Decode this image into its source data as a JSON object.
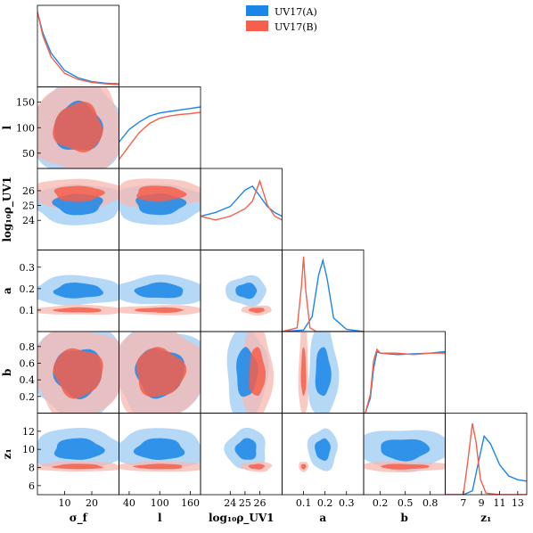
{
  "chart_data": {
    "type": "corner",
    "parameters": [
      "σf",
      "l",
      "log10ρUV1",
      "a",
      "b",
      "z1"
    ],
    "axis_labels": {
      "x": [
        "σ_f",
        "l",
        "log₁₀ρ_UV1",
        "a",
        "b",
        "z₁"
      ],
      "y": [
        "l",
        "log₁₀ρ_UV1",
        "a",
        "b",
        "z₁"
      ]
    },
    "ranges": [
      [
        0,
        30
      ],
      [
        20,
        180
      ],
      [
        22,
        27.5
      ],
      [
        0,
        0.38
      ],
      [
        0,
        0.98
      ],
      [
        5,
        14
      ]
    ],
    "ticks": [
      [
        10,
        20
      ],
      [
        40,
        100,
        160
      ],
      [
        24,
        25,
        26
      ],
      [
        0.1,
        0.2,
        0.3
      ],
      [
        0.2,
        0.4,
        0.6,
        0.8
      ],
      [
        6,
        8,
        10,
        12
      ]
    ],
    "x_tick_labels": [
      [
        "10",
        "20"
      ],
      [
        "40",
        "100",
        "160"
      ],
      [
        "24",
        "25",
        "26"
      ],
      [
        "0.1",
        "0.2",
        "0.3"
      ],
      [
        "0.2",
        "0.5",
        "0.8"
      ],
      [
        "7",
        "9",
        "11",
        "13"
      ]
    ],
    "x_tick_values": [
      [
        10,
        20
      ],
      [
        40,
        100,
        160
      ],
      [
        24,
        25,
        26
      ],
      [
        0.1,
        0.2,
        0.3
      ],
      [
        0.2,
        0.5,
        0.8
      ],
      [
        7,
        9,
        11,
        13
      ]
    ],
    "y_tick_labels": [
      [
        "50",
        "100",
        "150"
      ],
      [
        "24",
        "25",
        "26"
      ],
      [
        "0.1",
        "0.2",
        "0.3"
      ],
      [
        "0.2",
        "0.4",
        "0.6",
        "0.8"
      ],
      [
        "6",
        "8",
        "10",
        "12"
      ]
    ],
    "y_tick_values": [
      [
        50,
        100,
        150
      ],
      [
        24,
        25,
        26
      ],
      [
        0.1,
        0.2,
        0.3
      ],
      [
        0.2,
        0.4,
        0.6,
        0.8
      ],
      [
        6,
        8,
        10,
        12
      ]
    ],
    "legend": {
      "placement": "top-center",
      "entries": [
        {
          "name": "UV17(A)",
          "color": "#1a86e8"
        },
        {
          "name": "UV17(B)",
          "color": "#f55f4b"
        }
      ]
    },
    "series": [
      {
        "name": "UV17(A)",
        "color": "#1a86e8",
        "light_color": "#9ccbf4",
        "marginals": [
          {
            "x": [
              0,
              2,
              5,
              10,
              15,
              20,
              25,
              30
            ],
            "y": [
              1.0,
              0.72,
              0.45,
              0.22,
              0.12,
              0.07,
              0.05,
              0.04
            ]
          },
          {
            "x": [
              20,
              40,
              60,
              80,
              100,
              120,
              140,
              160,
              180
            ],
            "y": [
              0.35,
              0.52,
              0.62,
              0.7,
              0.74,
              0.76,
              0.78,
              0.8,
              0.82
            ]
          },
          {
            "x": [
              22,
              23,
              24,
              25,
              25.5,
              26,
              26.5,
              27,
              27.5
            ],
            "y": [
              0.45,
              0.5,
              0.58,
              0.8,
              0.85,
              0.72,
              0.58,
              0.5,
              0.45
            ]
          },
          {
            "x": [
              0,
              0.1,
              0.14,
              0.17,
              0.19,
              0.21,
              0.24,
              0.3,
              0.38
            ],
            "y": [
              0.0,
              0.02,
              0.2,
              0.75,
              0.95,
              0.7,
              0.18,
              0.03,
              0.0
            ]
          },
          {
            "x": [
              0.02,
              0.08,
              0.12,
              0.16,
              0.2,
              0.4,
              0.6,
              0.8,
              0.98
            ],
            "y": [
              0.0,
              0.2,
              0.6,
              0.82,
              0.8,
              0.78,
              0.79,
              0.8,
              0.82
            ]
          },
          {
            "x": [
              5,
              7,
              8,
              8.7,
              9.3,
              10,
              11,
              12,
              13,
              14
            ],
            "y": [
              0.0,
              0.0,
              0.05,
              0.45,
              0.78,
              0.68,
              0.4,
              0.25,
              0.2,
              0.18
            ]
          }
        ]
      },
      {
        "name": "UV17(B)",
        "color": "#f55f4b",
        "light_color": "#f7b8b0",
        "marginals": [
          {
            "x": [
              0,
              2,
              5,
              10,
              15,
              20,
              25,
              30
            ],
            "y": [
              1.0,
              0.68,
              0.4,
              0.18,
              0.1,
              0.06,
              0.04,
              0.03
            ]
          },
          {
            "x": [
              20,
              40,
              60,
              80,
              100,
              120,
              140,
              160,
              180
            ],
            "y": [
              0.12,
              0.3,
              0.48,
              0.6,
              0.67,
              0.7,
              0.72,
              0.73,
              0.75
            ]
          },
          {
            "x": [
              22,
              23,
              24,
              25,
              25.5,
              26,
              26.5,
              27,
              27.5
            ],
            "y": [
              0.45,
              0.4,
              0.45,
              0.55,
              0.65,
              0.92,
              0.6,
              0.45,
              0.4
            ]
          },
          {
            "x": [
              0,
              0.07,
              0.09,
              0.1,
              0.11,
              0.13,
              0.16,
              0.25,
              0.38
            ],
            "y": [
              0.0,
              0.05,
              0.6,
              1.0,
              0.55,
              0.05,
              0.0,
              0.0,
              0.0
            ]
          },
          {
            "x": [
              0.02,
              0.08,
              0.12,
              0.16,
              0.2,
              0.4,
              0.6,
              0.8,
              0.98
            ],
            "y": [
              0.0,
              0.25,
              0.7,
              0.85,
              0.8,
              0.8,
              0.78,
              0.8,
              0.8
            ]
          },
          {
            "x": [
              5,
              7,
              7.5,
              8,
              8.4,
              8.9,
              9.5,
              11,
              14
            ],
            "y": [
              0.0,
              0.0,
              0.45,
              0.95,
              0.7,
              0.2,
              0.02,
              0.0,
              0.0
            ]
          }
        ]
      }
    ]
  }
}
